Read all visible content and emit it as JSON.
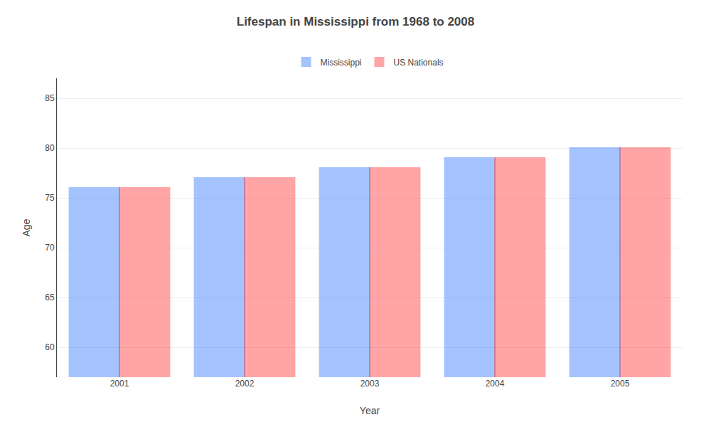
{
  "chart_data": {
    "type": "bar",
    "title": "Lifespan in Mississippi from 1968 to 2008",
    "xlabel": "Year",
    "ylabel": "Age",
    "categories": [
      "2001",
      "2002",
      "2003",
      "2004",
      "2005"
    ],
    "series": [
      {
        "name": "Mississippi",
        "color": "#0055ff",
        "values": [
          76,
          77,
          78,
          79,
          80
        ]
      },
      {
        "name": "US Nationals",
        "color": "#ff0000",
        "values": [
          76,
          77,
          78,
          79,
          80
        ]
      }
    ],
    "ylim": [
      57,
      87
    ],
    "yticks": [
      60,
      65,
      70,
      75,
      80,
      85
    ],
    "grid": true,
    "legend": "top"
  }
}
